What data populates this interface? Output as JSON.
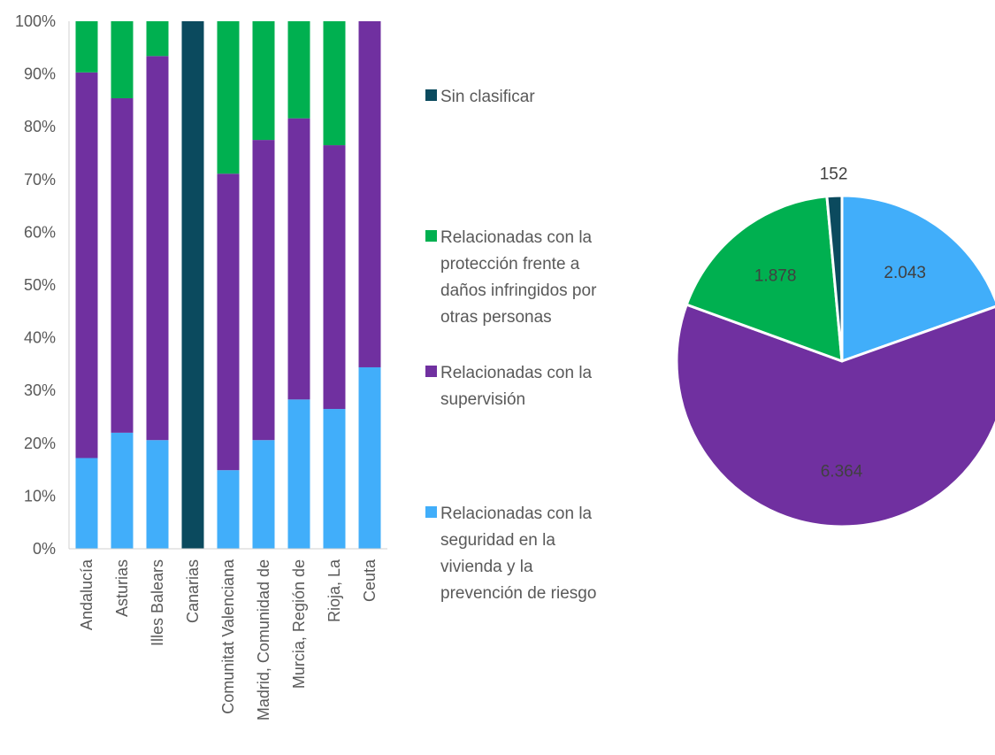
{
  "colors": {
    "sin_clasificar": "#0b4a5e",
    "proteccion": "#00b050",
    "supervision": "#7030a0",
    "seguridad": "#41aefa"
  },
  "chart_data": [
    {
      "type": "bar",
      "stacked": true,
      "percent": true,
      "categories": [
        "Andalucía",
        "Asturias",
        "Illes Balears",
        "Canarias",
        "Comunitat Valenciana",
        "Madrid, Comunidad de",
        "Murcia, Región de",
        "Rioja, La",
        "Ceuta"
      ],
      "yticks": [
        "0%",
        "10%",
        "20%",
        "30%",
        "40%",
        "50%",
        "60%",
        "70%",
        "80%",
        "90%",
        "100%"
      ],
      "ylim": [
        0,
        100
      ],
      "series": [
        {
          "name": "Relacionadas con la seguridad en la vivienda y la prevención de riesgo",
          "key": "seguridad",
          "values": [
            17.2,
            22,
            20.6,
            0,
            14.9,
            20.6,
            28.3,
            26.5,
            34.4
          ]
        },
        {
          "name": "Relacionadas con la supervisión",
          "key": "supervision",
          "values": [
            73.1,
            63.4,
            72.8,
            0,
            56.2,
            56.9,
            53.3,
            50,
            65.6
          ]
        },
        {
          "name": "Relacionadas con la protección frente a daños infringidos por otras personas",
          "key": "proteccion",
          "values": [
            9.7,
            14.6,
            6.6,
            0,
            28.9,
            22.5,
            18.4,
            23.5,
            0
          ]
        },
        {
          "name": "Sin clasificar",
          "key": "sin_clasificar",
          "values": [
            0,
            0,
            0,
            100,
            0,
            0,
            0,
            0,
            0
          ]
        }
      ],
      "legend": {
        "position": "right",
        "items": [
          {
            "key": "sin_clasificar",
            "lines": [
              "Sin clasificar"
            ]
          },
          {
            "key": "proteccion",
            "lines": [
              "Relacionadas con la",
              "protección frente a",
              "daños infringidos por",
              "otras personas"
            ]
          },
          {
            "key": "supervision",
            "lines": [
              "Relacionadas con la",
              "supervisión"
            ]
          },
          {
            "key": "seguridad",
            "lines": [
              "Relacionadas con la",
              "seguridad en la",
              "vivienda y la",
              "prevención de riesgo"
            ]
          }
        ]
      },
      "grid": false
    },
    {
      "type": "pie",
      "slices": [
        {
          "key": "seguridad",
          "value": 2043,
          "label": "2.043"
        },
        {
          "key": "supervision",
          "value": 6364,
          "label": "6.364"
        },
        {
          "key": "proteccion",
          "value": 1878,
          "label": "1.878"
        },
        {
          "key": "sin_clasificar",
          "value": 152,
          "label": "152"
        }
      ]
    }
  ]
}
